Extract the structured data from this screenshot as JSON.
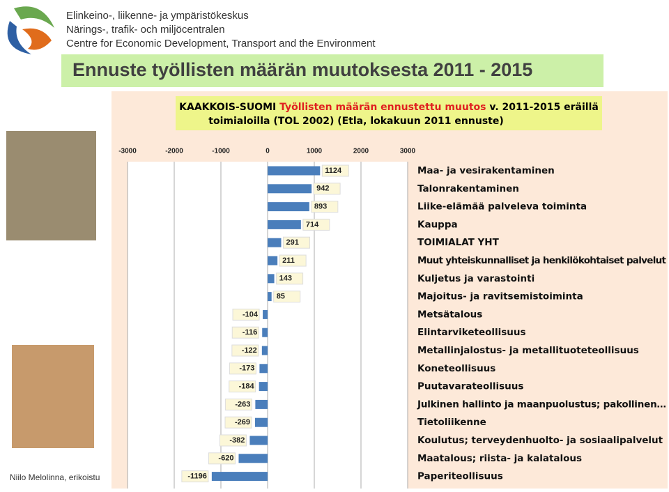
{
  "header": {
    "lines": [
      "Elinkeino-, liikenne- ja ympäristökeskus",
      "Närings-, trafik- och miljöcentralen",
      "Centre for Economic Development, Transport and the Environment"
    ],
    "slide_title": "Ennuste työllisten määrän muutoksesta 2011 - 2015"
  },
  "footer": "Niilo Melolinna, erikoistu",
  "chart_data": {
    "type": "bar",
    "orientation": "horizontal",
    "title": [
      "KAAKKOIS-SUOMI",
      "Työllisten määrän ennustettu muutos",
      "v. 2011-2015 eräillä",
      "toimialoilla (TOL 2002) (Etla, lokakuun 2011 ennuste)"
    ],
    "categories": [
      "Maa- ja vesirakentaminen",
      "Talonrakentaminen",
      "Liike-elämää palveleva toiminta",
      "Kauppa",
      "TOIMIALAT YHT",
      "Muut yhteiskunnalliset ja henkilökohtaiset palvelut",
      "Kuljetus ja varastointi",
      "Majoitus- ja ravitsemistoiminta",
      "Metsätalous",
      "Elintarviketeollisuus",
      "Metallinjalostus- ja metallituoteteollisuus",
      "Koneteollisuus",
      "Puutavarateollisuus",
      "Julkinen hallinto ja maanpuolustus; pakollinen…",
      "Tietoliikenne",
      "Koulutus; terveydenhuolto- ja sosiaalipalvelut",
      "Maatalous; riista- ja kalatalous",
      "Paperiteollisuus"
    ],
    "values": [
      1124,
      942,
      893,
      714,
      291,
      211,
      143,
      85,
      -104,
      -116,
      -122,
      -173,
      -184,
      -263,
      -269,
      -382,
      -620,
      -1196
    ],
    "color": "#4a7ebb",
    "xlim": [
      -3000,
      3000
    ],
    "xticks": [
      -3000,
      -2000,
      -1000,
      0,
      1000,
      2000,
      3000
    ],
    "grid": true
  }
}
